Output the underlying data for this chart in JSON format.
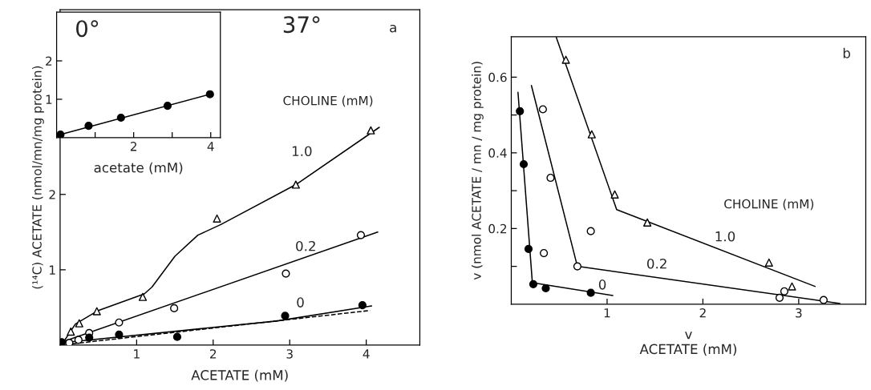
{
  "chart_data": [
    {
      "type": "scatter",
      "xlabel": "ACETATE (mM)",
      "ylabel": "(¹⁴C) ACETATE (nmol/mn/mg protein)",
      "xlim": [
        0,
        4.7
      ],
      "ylim": [
        0,
        4.45
      ],
      "xticks": [
        1,
        2,
        3,
        4
      ],
      "yticks": [
        1,
        2
      ],
      "series": [
        {
          "type": "scatter",
          "marker": "triangle",
          "color": "#ffffff",
          "x": [
            0.14,
            0.25,
            0.48,
            1.08,
            2.05,
            3.08,
            4.06
          ],
          "values": [
            0.18,
            0.29,
            0.45,
            0.64,
            1.68,
            2.13,
            2.85
          ]
        },
        {
          "type": "scatter",
          "marker": "circle",
          "color": "#ffffff",
          "x": [
            0.12,
            0.24,
            0.38,
            0.77,
            1.49,
            2.95,
            3.93
          ],
          "values": [
            0.03,
            0.07,
            0.16,
            0.3,
            0.49,
            0.95,
            1.46
          ]
        },
        {
          "type": "scatter",
          "marker": "circle",
          "color": "#000000",
          "x": [
            0.02,
            0.38,
            0.77,
            1.53,
            2.94,
            3.95
          ],
          "values": [
            0.04,
            0.1,
            0.14,
            0.11,
            0.39,
            0.53
          ]
        },
        {
          "type": "line",
          "line_style": "solid",
          "color": "#000000",
          "x": [
            0.05,
            0.2,
            0.5,
            1.1,
            1.2,
            1.5,
            1.8,
            2.1,
            3.08,
            4.17
          ],
          "values": [
            0.05,
            0.28,
            0.46,
            0.68,
            0.77,
            1.18,
            1.46,
            1.6,
            2.13,
            2.89
          ]
        },
        {
          "type": "line",
          "line_style": "solid",
          "color": "#000000",
          "x": [
            0.05,
            4.15
          ],
          "values": [
            0.05,
            1.5
          ]
        },
        {
          "type": "line",
          "line_style": "solid",
          "color": "#000000",
          "x": [
            0,
            2.83,
            4.07
          ],
          "values": [
            0.03,
            0.32,
            0.52
          ]
        },
        {
          "type": "line",
          "line_style": "dashed",
          "color": "#000000",
          "x": [
            0,
            4.05
          ],
          "values": [
            0.0,
            0.46
          ]
        }
      ],
      "annotations": [
        "37°",
        "a",
        "CHOLINE (mM)",
        "1.0",
        "0.2",
        "0"
      ]
    },
    {
      "type": "scatter",
      "xlabel": "acetate (mM)",
      "xlim": [
        0,
        4.25
      ],
      "ylim": [
        0,
        3.27
      ],
      "xticks": [
        {
          "value": 1,
          "label": null
        },
        2,
        {
          "value": 3,
          "label": null
        },
        4
      ],
      "yticks": [
        1,
        2
      ],
      "series": [
        {
          "type": "scatter",
          "marker": "circle",
          "color": "#000000",
          "x": [
            0.1,
            0.83,
            1.67,
            2.88,
            3.98
          ],
          "values": [
            0.08,
            0.31,
            0.52,
            0.83,
            1.13
          ]
        },
        {
          "type": "line",
          "line_style": "solid",
          "color": "#000000",
          "x": [
            0.1,
            3.98
          ],
          "values": [
            0.08,
            1.13
          ]
        }
      ],
      "annotations": [
        "0°"
      ]
    },
    {
      "type": "scatter",
      "xlabel": "v\nACETATE (mM)",
      "ylabel": "v (nmol ACETATE / mn / mg protein)",
      "xlim": [
        0,
        3.7
      ],
      "ylim": [
        0,
        0.707
      ],
      "xticks": [
        1,
        2,
        3
      ],
      "yticks": [
        {
          "value": 0.1,
          "label": null
        },
        0.2,
        {
          "value": 0.3,
          "label": null
        },
        0.4,
        {
          "value": 0.5,
          "label": null
        },
        0.6
      ],
      "series": [
        {
          "type": "scatter",
          "marker": "circle",
          "color": "#000000",
          "x": [
            0.09,
            0.13,
            0.18,
            0.23,
            0.36,
            0.83
          ],
          "values": [
            0.51,
            0.37,
            0.146,
            0.053,
            0.042,
            0.03
          ]
        },
        {
          "type": "scatter",
          "marker": "circle",
          "color": "#ffffff",
          "x": [
            0.33,
            0.41,
            0.34,
            0.83,
            0.69,
            2.8,
            2.85,
            3.26
          ],
          "values": [
            0.515,
            0.334,
            0.135,
            0.193,
            0.1,
            0.017,
            0.034,
            0.011
          ]
        },
        {
          "type": "scatter",
          "marker": "triangle",
          "color": "#ffffff",
          "x": [
            0.57,
            0.84,
            1.08,
            1.42,
            2.69,
            2.93
          ],
          "values": [
            0.646,
            0.449,
            0.29,
            0.216,
            0.11,
            0.047
          ]
        },
        {
          "type": "line",
          "line_style": "solid",
          "color": "#000000",
          "x": [
            0.07,
            0.22,
            1.06
          ],
          "values": [
            0.56,
            0.057,
            0.023
          ]
        },
        {
          "type": "line",
          "line_style": "solid",
          "color": "#000000",
          "x": [
            0.21,
            0.69,
            3.43
          ],
          "values": [
            0.578,
            0.1,
            0.002
          ]
        },
        {
          "type": "line",
          "line_style": "solid",
          "color": "#000000",
          "x": [
            0.47,
            1.1,
            3.17
          ],
          "values": [
            0.705,
            0.25,
            0.047
          ]
        }
      ],
      "annotations": [
        "b",
        "CHOLINE (mM)",
        "1.0",
        "0.2",
        "0"
      ]
    }
  ]
}
